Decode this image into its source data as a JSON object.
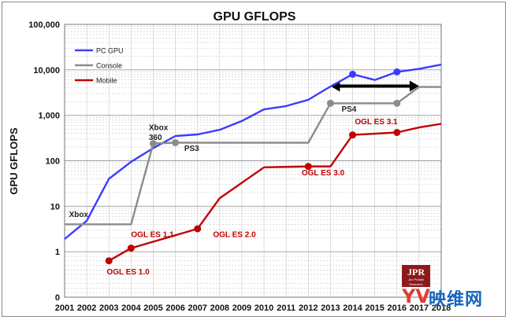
{
  "chart_data": {
    "type": "line",
    "title": "GPU GFLOPS",
    "xlabel": "",
    "ylabel": "GPU GFLOPS",
    "y_scale": "log",
    "ylim": [
      0,
      100000
    ],
    "x_ticks": [
      "2001",
      "2002",
      "2003",
      "2004",
      "2005",
      "2006",
      "2007",
      "2008",
      "2009",
      "2010",
      "2011",
      "2012",
      "2013",
      "2014",
      "2015",
      "2016",
      "2017",
      "2018"
    ],
    "y_ticks": [
      {
        "value": 0,
        "label": "0"
      },
      {
        "value": 1,
        "label": "1"
      },
      {
        "value": 10,
        "label": "10"
      },
      {
        "value": 100,
        "label": "100"
      },
      {
        "value": 1000,
        "label": "1,000"
      },
      {
        "value": 10000,
        "label": "10,000"
      },
      {
        "value": 100000,
        "label": "100,000"
      }
    ],
    "grid": true,
    "legend_position": "top-left",
    "series": [
      {
        "name": "PC GPU",
        "color": "#3b3bff",
        "points": [
          {
            "x": 2001,
            "y": 1.9
          },
          {
            "x": 2002,
            "y": 4.8
          },
          {
            "x": 2003,
            "y": 40
          },
          {
            "x": 2004,
            "y": 95
          },
          {
            "x": 2005,
            "y": 190
          },
          {
            "x": 2006,
            "y": 350
          },
          {
            "x": 2007,
            "y": 380
          },
          {
            "x": 2008,
            "y": 480
          },
          {
            "x": 2009,
            "y": 750
          },
          {
            "x": 2010,
            "y": 1350
          },
          {
            "x": 2011,
            "y": 1600
          },
          {
            "x": 2012,
            "y": 2200
          },
          {
            "x": 2013,
            "y": 4300
          },
          {
            "x": 2014,
            "y": 8000
          },
          {
            "x": 2015,
            "y": 6000
          },
          {
            "x": 2016,
            "y": 9000
          },
          {
            "x": 2017,
            "y": 10500
          },
          {
            "x": 2018,
            "y": 13000
          }
        ],
        "markers": [
          {
            "x": 2014,
            "y": 8000
          },
          {
            "x": 2016,
            "y": 9000
          }
        ]
      },
      {
        "name": "Console",
        "color": "#8c8c8c",
        "points": [
          {
            "x": 2001,
            "y": 4
          },
          {
            "x": 2004,
            "y": 4
          },
          {
            "x": 2005,
            "y": 240
          },
          {
            "x": 2006,
            "y": 250
          },
          {
            "x": 2012,
            "y": 250
          },
          {
            "x": 2013,
            "y": 1840
          },
          {
            "x": 2016,
            "y": 1840
          },
          {
            "x": 2017,
            "y": 4200
          },
          {
            "x": 2018,
            "y": 4200
          }
        ],
        "markers": [
          {
            "x": 2005,
            "y": 240
          },
          {
            "x": 2006,
            "y": 250
          },
          {
            "x": 2013,
            "y": 1840
          },
          {
            "x": 2016,
            "y": 1840
          }
        ]
      },
      {
        "name": "Mobile",
        "color": "#c00000",
        "points": [
          {
            "x": 2003,
            "y": 0.8
          },
          {
            "x": 2004,
            "y": 1.2
          },
          {
            "x": 2007,
            "y": 3.2
          },
          {
            "x": 2008,
            "y": 15
          },
          {
            "x": 2010,
            "y": 72
          },
          {
            "x": 2012,
            "y": 75
          },
          {
            "x": 2013,
            "y": 75
          },
          {
            "x": 2014,
            "y": 370
          },
          {
            "x": 2016,
            "y": 420
          },
          {
            "x": 2017,
            "y": 540
          },
          {
            "x": 2018,
            "y": 650
          }
        ],
        "markers": [
          {
            "x": 2003,
            "y": 0.8
          },
          {
            "x": 2004,
            "y": 1.2
          },
          {
            "x": 2007,
            "y": 3.2
          },
          {
            "x": 2012,
            "y": 75
          },
          {
            "x": 2014,
            "y": 370
          },
          {
            "x": 2016,
            "y": 420
          }
        ]
      }
    ],
    "annotations": [
      {
        "text": "Xbox",
        "color": "#222222",
        "x": 2001.2,
        "y": 5.8
      },
      {
        "text": "Xbox",
        "color": "#222222",
        "x": 2004.8,
        "y": 470
      },
      {
        "text": "360",
        "color": "#222222",
        "x": 2004.8,
        "y": 290
      },
      {
        "text": "PS3",
        "color": "#222222",
        "x": 2006.4,
        "y": 165
      },
      {
        "text": "PS4",
        "color": "#222222",
        "x": 2013.5,
        "y": 1200
      },
      {
        "text": "OGL ES 1.1",
        "color": "#c00000",
        "x": 2004.0,
        "y": 2.1
      },
      {
        "text": "OGL ES 1.0",
        "color": "#c00000",
        "x": 2002.9,
        "y": 0.5
      },
      {
        "text": "OGL ES 2.0",
        "color": "#c00000",
        "x": 2007.7,
        "y": 2.1
      },
      {
        "text": "OGL ES 3.0",
        "color": "#c00000",
        "x": 2011.7,
        "y": 48
      },
      {
        "text": "OGL ES 3.1",
        "color": "#c00000",
        "x": 2014.1,
        "y": 640
      }
    ],
    "arrow": {
      "from_year": 2013,
      "to_year": 2017,
      "y": 4400,
      "color": "#000000"
    }
  },
  "watermark": {
    "jpr": "JPR",
    "jpr_sub": "Jon Peddie Research",
    "brand_logo": "YV",
    "brand_text": "映维网"
  }
}
